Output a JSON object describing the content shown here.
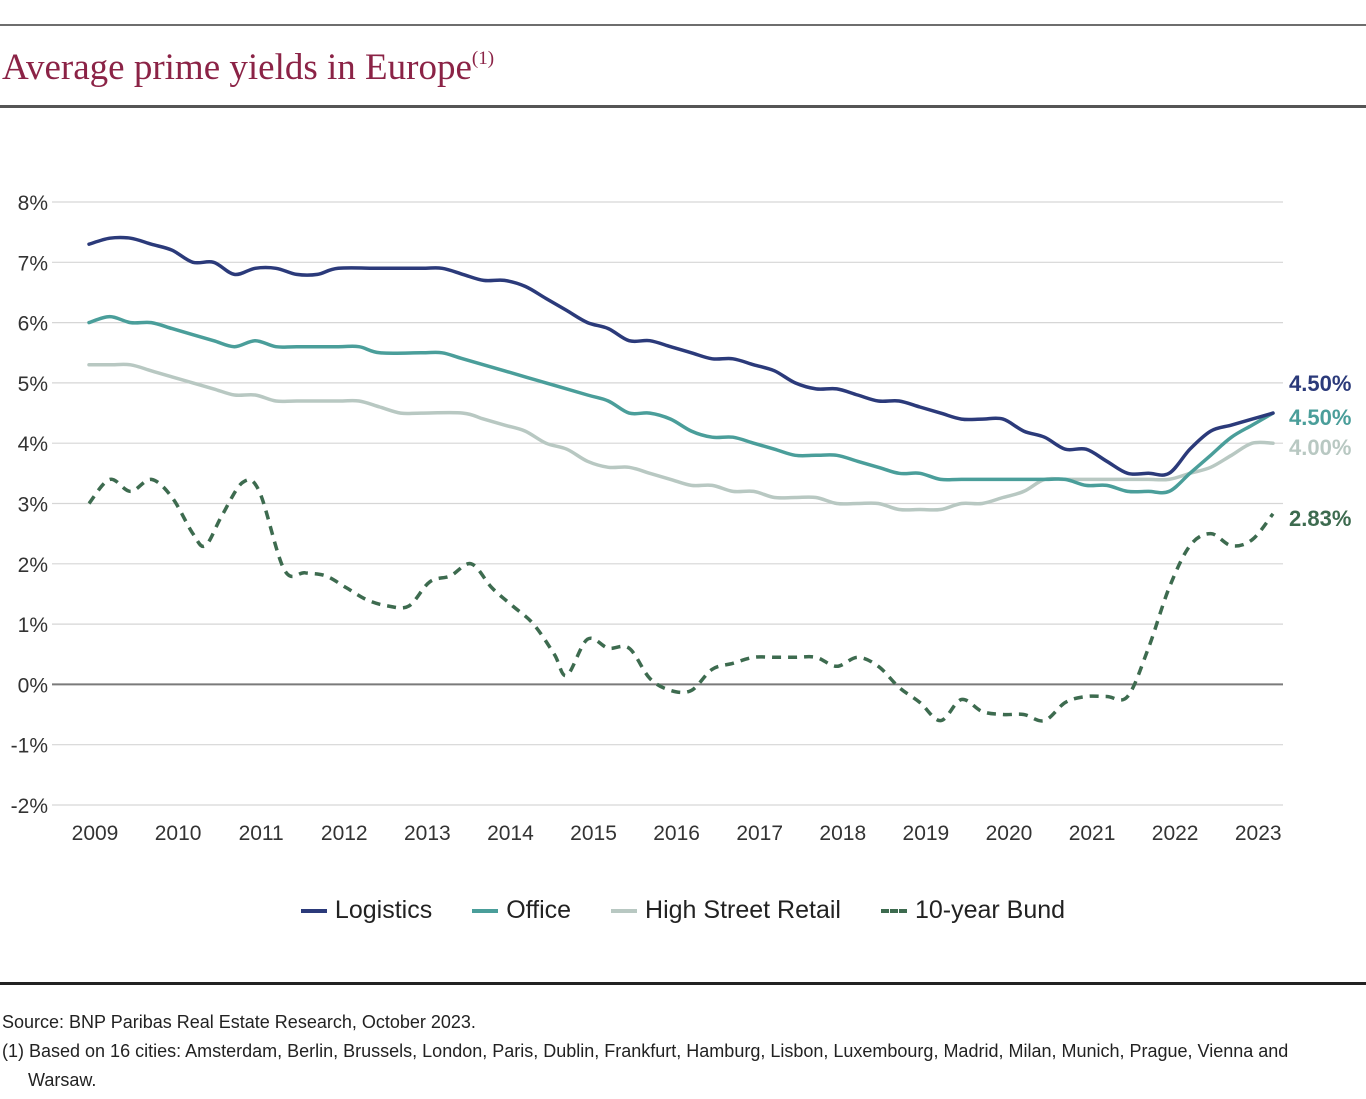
{
  "title": "Average prime yields in Europe",
  "title_sup": "(1)",
  "chart_data": {
    "type": "line",
    "x_ticks": [
      "2009",
      "2010",
      "2011",
      "2012",
      "2013",
      "2014",
      "2015",
      "2016",
      "2017",
      "2018",
      "2019",
      "2020",
      "2021",
      "2022",
      "2023"
    ],
    "y_ticks": [
      "8%",
      "7%",
      "6%",
      "5%",
      "4%",
      "3%",
      "2%",
      "1%",
      "0%",
      "-1%",
      "-2%"
    ],
    "ylim": [
      -2,
      8
    ],
    "xlim": [
      2009.0,
      2023.25
    ],
    "grid": true,
    "legend_position": "bottom",
    "series": [
      {
        "name": "Logistics",
        "color": "#2b3a7a",
        "dash": false,
        "end_label": "4.50%",
        "points": [
          [
            2009.0,
            7.3
          ],
          [
            2009.25,
            7.4
          ],
          [
            2009.5,
            7.4
          ],
          [
            2009.75,
            7.3
          ],
          [
            2010.0,
            7.2
          ],
          [
            2010.25,
            7.0
          ],
          [
            2010.5,
            7.0
          ],
          [
            2010.75,
            6.8
          ],
          [
            2011.0,
            6.9
          ],
          [
            2011.25,
            6.9
          ],
          [
            2011.5,
            6.8
          ],
          [
            2011.75,
            6.8
          ],
          [
            2012.0,
            6.9
          ],
          [
            2012.5,
            6.9
          ],
          [
            2013.0,
            6.9
          ],
          [
            2013.25,
            6.9
          ],
          [
            2013.5,
            6.8
          ],
          [
            2013.75,
            6.7
          ],
          [
            2014.0,
            6.7
          ],
          [
            2014.25,
            6.6
          ],
          [
            2014.5,
            6.4
          ],
          [
            2014.75,
            6.2
          ],
          [
            2015.0,
            6.0
          ],
          [
            2015.25,
            5.9
          ],
          [
            2015.5,
            5.7
          ],
          [
            2015.75,
            5.7
          ],
          [
            2016.0,
            5.6
          ],
          [
            2016.25,
            5.5
          ],
          [
            2016.5,
            5.4
          ],
          [
            2016.75,
            5.4
          ],
          [
            2017.0,
            5.3
          ],
          [
            2017.25,
            5.2
          ],
          [
            2017.5,
            5.0
          ],
          [
            2017.75,
            4.9
          ],
          [
            2018.0,
            4.9
          ],
          [
            2018.25,
            4.8
          ],
          [
            2018.5,
            4.7
          ],
          [
            2018.75,
            4.7
          ],
          [
            2019.0,
            4.6
          ],
          [
            2019.25,
            4.5
          ],
          [
            2019.5,
            4.4
          ],
          [
            2019.75,
            4.4
          ],
          [
            2020.0,
            4.4
          ],
          [
            2020.25,
            4.2
          ],
          [
            2020.5,
            4.1
          ],
          [
            2020.75,
            3.9
          ],
          [
            2021.0,
            3.9
          ],
          [
            2021.25,
            3.7
          ],
          [
            2021.5,
            3.5
          ],
          [
            2021.75,
            3.5
          ],
          [
            2022.0,
            3.5
          ],
          [
            2022.25,
            3.9
          ],
          [
            2022.5,
            4.2
          ],
          [
            2022.75,
            4.3
          ],
          [
            2023.0,
            4.4
          ],
          [
            2023.25,
            4.5
          ]
        ]
      },
      {
        "name": "Office",
        "color": "#4a9e9a",
        "dash": false,
        "end_label": "4.50%",
        "points": [
          [
            2009.0,
            6.0
          ],
          [
            2009.25,
            6.1
          ],
          [
            2009.5,
            6.0
          ],
          [
            2009.75,
            6.0
          ],
          [
            2010.0,
            5.9
          ],
          [
            2010.25,
            5.8
          ],
          [
            2010.5,
            5.7
          ],
          [
            2010.75,
            5.6
          ],
          [
            2011.0,
            5.7
          ],
          [
            2011.25,
            5.6
          ],
          [
            2011.5,
            5.6
          ],
          [
            2012.0,
            5.6
          ],
          [
            2012.25,
            5.6
          ],
          [
            2012.5,
            5.5
          ],
          [
            2013.0,
            5.5
          ],
          [
            2013.25,
            5.5
          ],
          [
            2013.5,
            5.4
          ],
          [
            2014.0,
            5.2
          ],
          [
            2014.5,
            5.0
          ],
          [
            2015.0,
            4.8
          ],
          [
            2015.25,
            4.7
          ],
          [
            2015.5,
            4.5
          ],
          [
            2015.75,
            4.5
          ],
          [
            2016.0,
            4.4
          ],
          [
            2016.25,
            4.2
          ],
          [
            2016.5,
            4.1
          ],
          [
            2016.75,
            4.1
          ],
          [
            2017.0,
            4.0
          ],
          [
            2017.25,
            3.9
          ],
          [
            2017.5,
            3.8
          ],
          [
            2017.75,
            3.8
          ],
          [
            2018.0,
            3.8
          ],
          [
            2018.25,
            3.7
          ],
          [
            2018.5,
            3.6
          ],
          [
            2018.75,
            3.5
          ],
          [
            2019.0,
            3.5
          ],
          [
            2019.25,
            3.4
          ],
          [
            2019.5,
            3.4
          ],
          [
            2020.0,
            3.4
          ],
          [
            2020.5,
            3.4
          ],
          [
            2020.75,
            3.4
          ],
          [
            2021.0,
            3.3
          ],
          [
            2021.25,
            3.3
          ],
          [
            2021.5,
            3.2
          ],
          [
            2021.75,
            3.2
          ],
          [
            2022.0,
            3.2
          ],
          [
            2022.25,
            3.5
          ],
          [
            2022.5,
            3.8
          ],
          [
            2022.75,
            4.1
          ],
          [
            2023.0,
            4.3
          ],
          [
            2023.25,
            4.5
          ]
        ]
      },
      {
        "name": "High Street Retail",
        "color": "#b8c8c2",
        "dash": false,
        "end_label": "4.00%",
        "points": [
          [
            2009.0,
            5.3
          ],
          [
            2009.25,
            5.3
          ],
          [
            2009.5,
            5.3
          ],
          [
            2009.75,
            5.2
          ],
          [
            2010.0,
            5.1
          ],
          [
            2010.25,
            5.0
          ],
          [
            2010.5,
            4.9
          ],
          [
            2010.75,
            4.8
          ],
          [
            2011.0,
            4.8
          ],
          [
            2011.25,
            4.7
          ],
          [
            2011.5,
            4.7
          ],
          [
            2012.0,
            4.7
          ],
          [
            2012.25,
            4.7
          ],
          [
            2012.5,
            4.6
          ],
          [
            2012.75,
            4.5
          ],
          [
            2013.0,
            4.5
          ],
          [
            2013.5,
            4.5
          ],
          [
            2013.75,
            4.4
          ],
          [
            2014.0,
            4.3
          ],
          [
            2014.25,
            4.2
          ],
          [
            2014.5,
            4.0
          ],
          [
            2014.75,
            3.9
          ],
          [
            2015.0,
            3.7
          ],
          [
            2015.25,
            3.6
          ],
          [
            2015.5,
            3.6
          ],
          [
            2015.75,
            3.5
          ],
          [
            2016.0,
            3.4
          ],
          [
            2016.25,
            3.3
          ],
          [
            2016.5,
            3.3
          ],
          [
            2016.75,
            3.2
          ],
          [
            2017.0,
            3.2
          ],
          [
            2017.25,
            3.1
          ],
          [
            2017.5,
            3.1
          ],
          [
            2017.75,
            3.1
          ],
          [
            2018.0,
            3.0
          ],
          [
            2018.25,
            3.0
          ],
          [
            2018.5,
            3.0
          ],
          [
            2018.75,
            2.9
          ],
          [
            2019.0,
            2.9
          ],
          [
            2019.25,
            2.9
          ],
          [
            2019.5,
            3.0
          ],
          [
            2019.75,
            3.0
          ],
          [
            2020.0,
            3.1
          ],
          [
            2020.25,
            3.2
          ],
          [
            2020.5,
            3.4
          ],
          [
            2020.75,
            3.4
          ],
          [
            2021.0,
            3.4
          ],
          [
            2021.5,
            3.4
          ],
          [
            2021.75,
            3.4
          ],
          [
            2022.0,
            3.4
          ],
          [
            2022.25,
            3.5
          ],
          [
            2022.5,
            3.6
          ],
          [
            2022.75,
            3.8
          ],
          [
            2023.0,
            4.0
          ],
          [
            2023.25,
            4.0
          ]
        ]
      },
      {
        "name": "10-year Bund",
        "color": "#3d6b4f",
        "dash": true,
        "end_label": "2.83%",
        "points": [
          [
            2009.0,
            3.0
          ],
          [
            2009.25,
            3.4
          ],
          [
            2009.5,
            3.2
          ],
          [
            2009.75,
            3.4
          ],
          [
            2010.0,
            3.1
          ],
          [
            2010.25,
            2.5
          ],
          [
            2010.4,
            2.3
          ],
          [
            2010.6,
            2.8
          ],
          [
            2010.85,
            3.35
          ],
          [
            2011.05,
            3.2
          ],
          [
            2011.35,
            1.9
          ],
          [
            2011.6,
            1.85
          ],
          [
            2011.85,
            1.8
          ],
          [
            2012.1,
            1.6
          ],
          [
            2012.35,
            1.4
          ],
          [
            2012.6,
            1.3
          ],
          [
            2012.85,
            1.3
          ],
          [
            2013.1,
            1.7
          ],
          [
            2013.35,
            1.8
          ],
          [
            2013.6,
            2.0
          ],
          [
            2013.85,
            1.6
          ],
          [
            2014.1,
            1.3
          ],
          [
            2014.35,
            1.0
          ],
          [
            2014.6,
            0.5
          ],
          [
            2014.75,
            0.15
          ],
          [
            2015.0,
            0.75
          ],
          [
            2015.25,
            0.6
          ],
          [
            2015.5,
            0.6
          ],
          [
            2015.75,
            0.1
          ],
          [
            2016.0,
            -0.1
          ],
          [
            2016.25,
            -0.1
          ],
          [
            2016.5,
            0.25
          ],
          [
            2016.75,
            0.35
          ],
          [
            2017.0,
            0.45
          ],
          [
            2017.25,
            0.45
          ],
          [
            2017.5,
            0.45
          ],
          [
            2017.75,
            0.45
          ],
          [
            2018.0,
            0.3
          ],
          [
            2018.25,
            0.45
          ],
          [
            2018.5,
            0.3
          ],
          [
            2018.75,
            -0.05
          ],
          [
            2019.0,
            -0.3
          ],
          [
            2019.25,
            -0.6
          ],
          [
            2019.5,
            -0.25
          ],
          [
            2019.75,
            -0.45
          ],
          [
            2020.0,
            -0.5
          ],
          [
            2020.25,
            -0.5
          ],
          [
            2020.5,
            -0.6
          ],
          [
            2020.75,
            -0.3
          ],
          [
            2021.0,
            -0.2
          ],
          [
            2021.25,
            -0.2
          ],
          [
            2021.5,
            -0.2
          ],
          [
            2021.75,
            0.6
          ],
          [
            2022.0,
            1.6
          ],
          [
            2022.25,
            2.3
          ],
          [
            2022.5,
            2.5
          ],
          [
            2022.75,
            2.3
          ],
          [
            2023.0,
            2.4
          ],
          [
            2023.25,
            2.83
          ]
        ]
      }
    ]
  },
  "legend": [
    {
      "label": "Logistics",
      "color": "#2b3a7a",
      "dash": false
    },
    {
      "label": "Office",
      "color": "#4a9e9a",
      "dash": false
    },
    {
      "label": "High Street Retail",
      "color": "#b8c8c2",
      "dash": false
    },
    {
      "label": "10-year Bund",
      "color": "#3d6b4f",
      "dash": true
    }
  ],
  "footnotes": {
    "source": "Source: BNP Paribas Real Estate Research, October 2023.",
    "note": "(1) Based on 16 cities: Amsterdam, Berlin, Brussels, London, Paris, Dublin, Frankfurt, Hamburg, Lisbon, Luxembourg, Madrid, Milan, Munich, Prague, Vienna and Warsaw."
  }
}
